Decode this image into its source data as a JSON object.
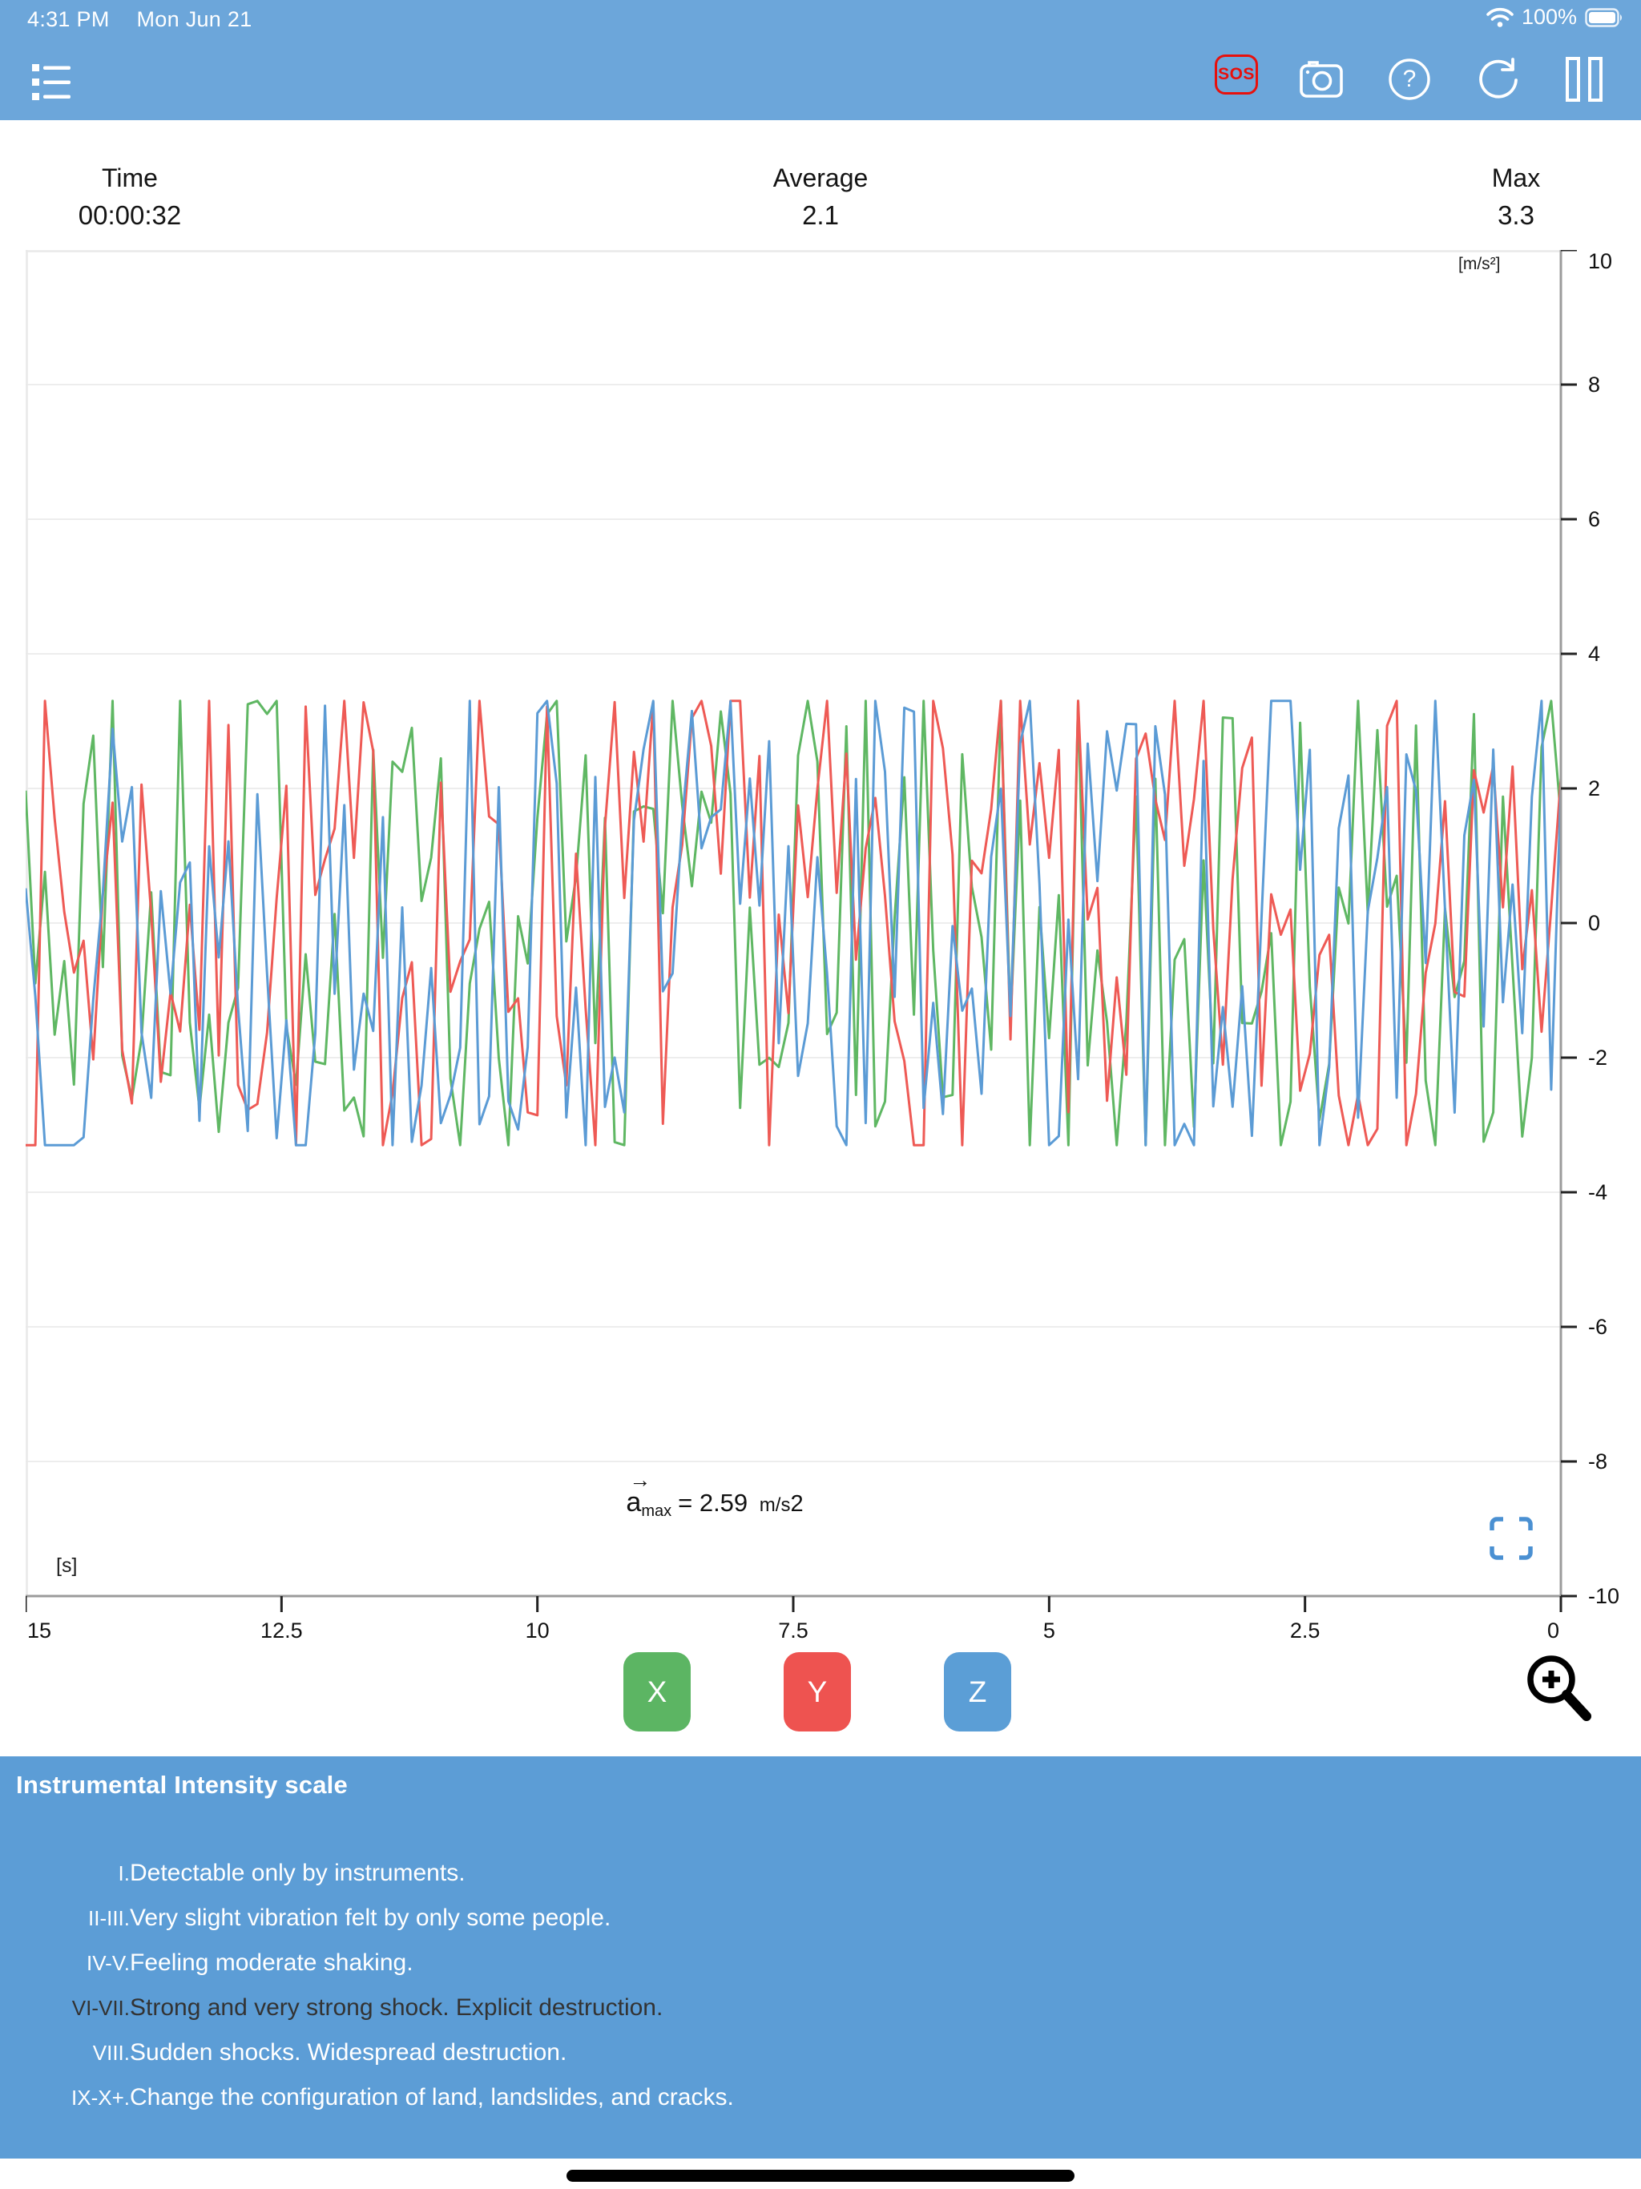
{
  "status_bar": {
    "time": "4:31 PM",
    "date": "Mon Jun 21",
    "battery_percent": "100%"
  },
  "toolbar": {
    "sos_label": "SOS"
  },
  "stats": {
    "time_label": "Time",
    "time_value": "00:00:32",
    "average_label": "Average",
    "average_value": "2.1",
    "max_label": "Max",
    "max_value": "3.3"
  },
  "chart_data": {
    "type": "line",
    "title": "",
    "x_axis": {
      "unit_label": "[s]",
      "tick_labels": [
        "15",
        "12.5",
        "10",
        "7.5",
        "5",
        "2.5",
        "0"
      ],
      "tick_values": [
        15,
        12.5,
        10,
        7.5,
        5,
        2.5,
        0
      ],
      "min": 0,
      "max": 15,
      "direction": "reversed: 15 s of history on left, newest sample at 0 on right"
    },
    "y_axis": {
      "unit_label": "[m/s²]",
      "tick_labels": [
        "10",
        "8",
        "6",
        "4",
        "2",
        "0",
        "-2",
        "-4",
        "-6",
        "-8",
        "-10"
      ],
      "tick_values": [
        10,
        8,
        6,
        4,
        2,
        0,
        -2,
        -4,
        -6,
        -8,
        -10
      ],
      "min": -10,
      "max": 10
    },
    "grid": {
      "horizontal": true,
      "vertical": false
    },
    "legend_position": "none (colored X/Y/Z axis buttons below chart)",
    "series": [
      {
        "name": "X",
        "color": "#5fb763",
        "seed": 20
      },
      {
        "name": "Y",
        "color": "#ee5a55",
        "seed": 7
      },
      {
        "name": "Z",
        "color": "#5b9bd5",
        "seed": 13
      }
    ],
    "points_per_series": 160,
    "noise_amplitude_ms2": 3.3,
    "description": "Three-axis accelerometer vibration noise oscillating about 0, approx ±3.3 m/s²; individual samples are unlabeled random noise",
    "annotation": "a→max = 2.59 m/s2",
    "summary": {
      "elapsed_time": "00:00:32",
      "average": "2.1",
      "max": "3.3",
      "a_max_ms2": "2.59"
    }
  },
  "annotation": {
    "variable": "a",
    "arrow": "→",
    "subscript": "max",
    "value_text": "= 2.59",
    "unit": "m/s",
    "unit_exponent": "2"
  },
  "axis_buttons": [
    {
      "label": "X",
      "color": "#5cb563"
    },
    {
      "label": "Y",
      "color": "#ee5350"
    },
    {
      "label": "Z",
      "color": "#5b9ed6"
    }
  ],
  "intensity_panel": {
    "title": "Instrumental Intensity scale",
    "highlight_text_color": "#333333",
    "items": [
      {
        "numeral": "I.",
        "text": "Detectable only by instruments.",
        "highlighted": false
      },
      {
        "numeral": "II-III.",
        "text": "Very slight vibration felt by only some people.",
        "highlighted": false
      },
      {
        "numeral": "IV-V.",
        "text": "Feeling moderate shaking.",
        "highlighted": false
      },
      {
        "numeral": "VI-VII.",
        "text": "Strong and very strong shock. Explicit destruction.",
        "highlighted": true
      },
      {
        "numeral": "VIII.",
        "text": "Sudden shocks. Widespread destruction.",
        "highlighted": false
      },
      {
        "numeral": "IX-X+.",
        "text": "Change the configuration of land, landslides, and cracks.",
        "highlighted": false
      }
    ]
  }
}
